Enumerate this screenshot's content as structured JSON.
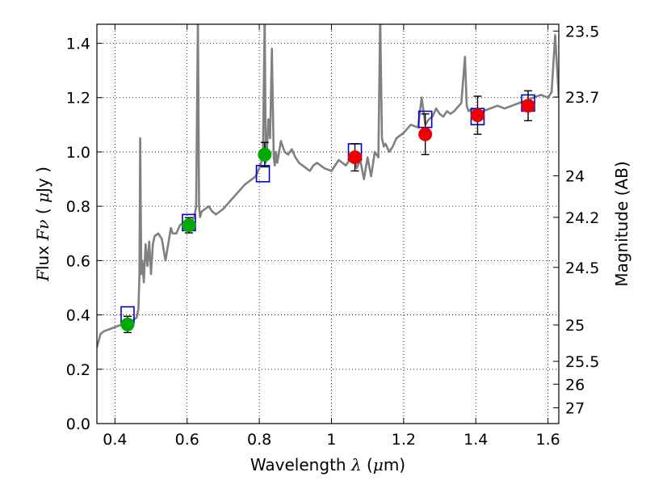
{
  "chart_data": {
    "type": "line",
    "title": "",
    "xlabel": "Wavelength  λ (μm)",
    "ylabel": "Flux  Fν  ( μJy )",
    "y2label": "Magnitude (AB)",
    "xlim": [
      0.35,
      1.63
    ],
    "ylim": [
      0.0,
      1.47
    ],
    "grid": true,
    "x_ticks": [
      0.4,
      0.6,
      0.8,
      1.0,
      1.2,
      1.4,
      1.6
    ],
    "x_tick_labels": [
      "0.4",
      "0.6",
      "0.8",
      "1",
      "1.2",
      "1.4",
      "1.6"
    ],
    "y_ticks": [
      0.0,
      0.2,
      0.4,
      0.6,
      0.8,
      1.0,
      1.2,
      1.4
    ],
    "y_tick_labels": [
      "0.0",
      "0.2",
      "0.4",
      "0.6",
      "0.8",
      "1.0",
      "1.2",
      "1.4"
    ],
    "y2_ticks": [
      {
        "label": "23.5",
        "flux": 1.445
      },
      {
        "label": "23.7",
        "flux": 1.202
      },
      {
        "label": "24",
        "flux": 0.912
      },
      {
        "label": "24.2",
        "flux": 0.759
      },
      {
        "label": "24.5",
        "flux": 0.575
      },
      {
        "label": "25",
        "flux": 0.363
      },
      {
        "label": "25.5",
        "flux": 0.229
      },
      {
        "label": "26",
        "flux": 0.145
      },
      {
        "label": "27",
        "flux": 0.058
      }
    ],
    "series": [
      {
        "type": "line",
        "color": "#808080",
        "x": [
          0.35,
          0.36,
          0.37,
          0.39,
          0.41,
          0.43,
          0.45,
          0.46,
          0.465,
          0.468,
          0.47,
          0.473,
          0.476,
          0.48,
          0.485,
          0.49,
          0.495,
          0.5,
          0.505,
          0.51,
          0.52,
          0.53,
          0.54,
          0.55,
          0.555,
          0.56,
          0.57,
          0.58,
          0.59,
          0.6,
          0.61,
          0.62,
          0.625,
          0.63,
          0.633,
          0.636,
          0.64,
          0.65,
          0.66,
          0.67,
          0.68,
          0.7,
          0.72,
          0.74,
          0.76,
          0.78,
          0.79,
          0.8,
          0.81,
          0.815,
          0.818,
          0.821,
          0.825,
          0.83,
          0.835,
          0.84,
          0.843,
          0.846,
          0.85,
          0.86,
          0.87,
          0.88,
          0.89,
          0.9,
          0.91,
          0.92,
          0.93,
          0.94,
          0.95,
          0.96,
          0.98,
          1.0,
          1.02,
          1.04,
          1.05,
          1.06,
          1.07,
          1.08,
          1.09,
          1.1,
          1.11,
          1.12,
          1.13,
          1.135,
          1.14,
          1.145,
          1.15,
          1.16,
          1.17,
          1.18,
          1.2,
          1.22,
          1.24,
          1.25,
          1.26,
          1.27,
          1.28,
          1.29,
          1.3,
          1.31,
          1.32,
          1.33,
          1.34,
          1.36,
          1.37,
          1.375,
          1.38,
          1.39,
          1.4,
          1.42,
          1.44,
          1.46,
          1.48,
          1.5,
          1.52,
          1.54,
          1.56,
          1.58,
          1.6,
          1.61,
          1.62,
          1.63
        ],
        "y": [
          0.28,
          0.33,
          0.34,
          0.35,
          0.36,
          0.37,
          0.38,
          0.39,
          0.42,
          0.55,
          1.05,
          0.55,
          0.6,
          0.52,
          0.66,
          0.58,
          0.67,
          0.55,
          0.66,
          0.69,
          0.7,
          0.68,
          0.6,
          0.68,
          0.72,
          0.7,
          0.7,
          0.73,
          0.74,
          0.74,
          0.74,
          0.76,
          0.8,
          1.5,
          0.8,
          0.76,
          0.78,
          0.79,
          0.8,
          0.78,
          0.77,
          0.79,
          0.82,
          0.85,
          0.88,
          0.9,
          0.91,
          0.94,
          0.98,
          1.5,
          0.96,
          1.0,
          1.12,
          1.05,
          1.38,
          0.98,
          0.95,
          1.0,
          0.96,
          1.04,
          1.0,
          0.99,
          1.01,
          0.98,
          0.96,
          0.95,
          0.94,
          0.93,
          0.95,
          0.96,
          0.94,
          0.93,
          0.97,
          0.95,
          0.97,
          0.99,
          0.94,
          0.97,
          0.9,
          0.98,
          0.91,
          1.0,
          0.98,
          1.5,
          1.05,
          1.02,
          1.03,
          1.0,
          1.02,
          1.05,
          1.07,
          1.1,
          1.09,
          1.2,
          1.1,
          1.12,
          1.13,
          1.16,
          1.14,
          1.13,
          1.15,
          1.14,
          1.15,
          1.18,
          1.35,
          1.17,
          1.15,
          1.16,
          1.14,
          1.15,
          1.16,
          1.17,
          1.16,
          1.17,
          1.18,
          1.19,
          1.2,
          1.21,
          1.2,
          1.22,
          1.43,
          1.2
        ]
      },
      {
        "type": "scatter",
        "marker": "square-open",
        "color": "#0000cc",
        "x": [
          0.435,
          0.605,
          0.81,
          1.065,
          1.26,
          1.405,
          1.545
        ],
        "y": [
          0.4,
          0.74,
          0.92,
          1.0,
          1.12,
          1.13,
          1.18
        ]
      },
      {
        "type": "scatter",
        "marker": "circle",
        "color": "#00aa00",
        "x": [
          0.435,
          0.605,
          0.815
        ],
        "y": [
          0.365,
          0.73,
          0.99
        ],
        "yerr": [
          0.03,
          0.028,
          0.045
        ]
      },
      {
        "type": "scatter",
        "marker": "circle",
        "color": "#ee0000",
        "x": [
          1.065,
          1.26,
          1.405,
          1.545
        ],
        "y": [
          0.98,
          1.065,
          1.135,
          1.17
        ],
        "yerr": [
          0.05,
          0.075,
          0.07,
          0.055
        ]
      }
    ]
  }
}
